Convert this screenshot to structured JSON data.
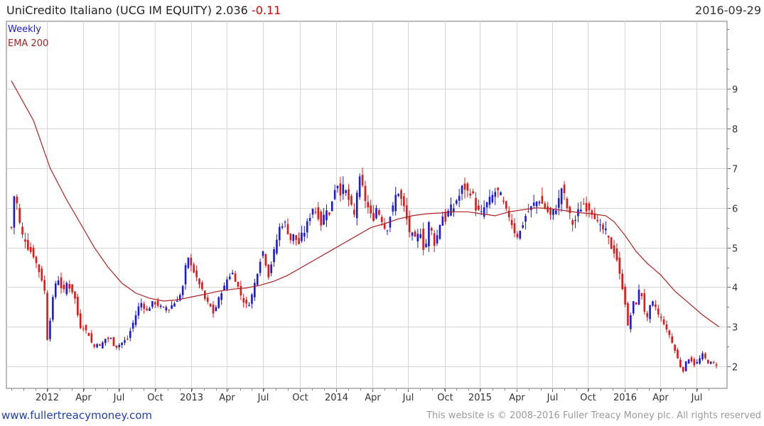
{
  "header": {
    "title_main": "UniCredito Italiano (UCG IM EQUITY) 2.036",
    "title_change": "-0.11",
    "date": "2016-09-29"
  },
  "footer": {
    "site": "www.fullertreacymoney.com",
    "copyright": "This website is © 2008-2016 Fuller Treacy Money plc. All rights reserved"
  },
  "colors": {
    "up": "#1a1adc",
    "down": "#e41515",
    "ema": "#b02020",
    "grid": "#d6d6d6"
  },
  "chart_data": {
    "type": "candlestick",
    "title": "UniCredito Italiano (UCG IM EQUITY)",
    "frequency_label": "Weekly",
    "ylim": [
      1.45,
      10.7
    ],
    "yticks": [
      2,
      3,
      4,
      5,
      6,
      7,
      8,
      9
    ],
    "xticks": [
      {
        "label": "2012",
        "t": 12.9
      },
      {
        "label": "Apr",
        "t": 25.9
      },
      {
        "label": "Jul",
        "t": 38.9
      },
      {
        "label": "Oct",
        "t": 52.0
      },
      {
        "label": "2013",
        "t": 65.1
      },
      {
        "label": "Apr",
        "t": 78.0
      },
      {
        "label": "Jul",
        "t": 91.0
      },
      {
        "label": "Oct",
        "t": 104.3
      },
      {
        "label": "2014",
        "t": 117.4
      },
      {
        "label": "Apr",
        "t": 130.5
      },
      {
        "label": "Jul",
        "t": 143.4
      },
      {
        "label": "Oct",
        "t": 156.7
      },
      {
        "label": "2015",
        "t": 169.5
      },
      {
        "label": "Apr",
        "t": 182.7
      },
      {
        "label": "Jul",
        "t": 195.6
      },
      {
        "label": "Oct",
        "t": 208.6
      },
      {
        "label": "2016",
        "t": 221.9
      },
      {
        "label": "Apr",
        "t": 234.8
      },
      {
        "label": "Jul",
        "t": 247.8
      }
    ],
    "price_anchors": [
      [
        0,
        5.5
      ],
      [
        1,
        6.3
      ],
      [
        2,
        6.1
      ],
      [
        3,
        5.6
      ],
      [
        4,
        5.3
      ],
      [
        5,
        5.2
      ],
      [
        6,
        5.0
      ],
      [
        7,
        4.9
      ],
      [
        8,
        4.8
      ],
      [
        9,
        4.6
      ],
      [
        10,
        4.4
      ],
      [
        11,
        4.2
      ],
      [
        12,
        3.9
      ],
      [
        13,
        2.7
      ],
      [
        14,
        3.2
      ],
      [
        15,
        3.7
      ],
      [
        16,
        4.1
      ],
      [
        17,
        4.2
      ],
      [
        18,
        4.0
      ],
      [
        19,
        3.9
      ],
      [
        20,
        4.1
      ],
      [
        21,
        4.0
      ],
      [
        22,
        3.9
      ],
      [
        23,
        3.7
      ],
      [
        24,
        3.3
      ],
      [
        25,
        3.0
      ],
      [
        26,
        3.0
      ],
      [
        27,
        2.9
      ],
      [
        28,
        2.8
      ],
      [
        29,
        2.6
      ],
      [
        30,
        2.5
      ],
      [
        31,
        2.6
      ],
      [
        32,
        2.5
      ],
      [
        33,
        2.6
      ],
      [
        34,
        2.7
      ],
      [
        35,
        2.7
      ],
      [
        36,
        2.7
      ],
      [
        37,
        2.55
      ],
      [
        38,
        2.5
      ],
      [
        39,
        2.55
      ],
      [
        40,
        2.6
      ],
      [
        41,
        2.65
      ],
      [
        42,
        2.7
      ],
      [
        43,
        2.9
      ],
      [
        44,
        3.1
      ],
      [
        45,
        3.3
      ],
      [
        46,
        3.5
      ],
      [
        47,
        3.6
      ],
      [
        48,
        3.5
      ],
      [
        49,
        3.4
      ],
      [
        50,
        3.5
      ],
      [
        51,
        3.6
      ],
      [
        52,
        3.6
      ],
      [
        53,
        3.55
      ],
      [
        54,
        3.5
      ],
      [
        55,
        3.45
      ],
      [
        56,
        3.5
      ],
      [
        57,
        3.45
      ],
      [
        58,
        3.55
      ],
      [
        59,
        3.6
      ],
      [
        60,
        3.7
      ],
      [
        61,
        3.8
      ],
      [
        62,
        4.0
      ],
      [
        63,
        4.5
      ],
      [
        64,
        4.7
      ],
      [
        65,
        4.6
      ],
      [
        66,
        4.4
      ],
      [
        67,
        4.2
      ],
      [
        68,
        4.1
      ],
      [
        69,
        3.9
      ],
      [
        70,
        3.7
      ],
      [
        71,
        3.6
      ],
      [
        72,
        3.5
      ],
      [
        73,
        3.35
      ],
      [
        74,
        3.5
      ],
      [
        75,
        3.7
      ],
      [
        76,
        3.9
      ],
      [
        77,
        4.0
      ],
      [
        78,
        4.2
      ],
      [
        79,
        4.3
      ],
      [
        80,
        4.35
      ],
      [
        81,
        4.2
      ],
      [
        82,
        4.0
      ],
      [
        83,
        3.8
      ],
      [
        84,
        3.65
      ],
      [
        85,
        3.55
      ],
      [
        86,
        3.6
      ],
      [
        87,
        3.8
      ],
      [
        88,
        4.1
      ],
      [
        89,
        4.4
      ],
      [
        90,
        4.7
      ],
      [
        91,
        4.9
      ],
      [
        92,
        4.6
      ],
      [
        93,
        4.3
      ],
      [
        94,
        4.6
      ],
      [
        95,
        4.9
      ],
      [
        96,
        5.2
      ],
      [
        97,
        5.5
      ],
      [
        98,
        5.6
      ],
      [
        99,
        5.6
      ],
      [
        100,
        5.4
      ],
      [
        101,
        5.2
      ],
      [
        102,
        5.3
      ],
      [
        103,
        5.2
      ],
      [
        104,
        5.1
      ],
      [
        105,
        5.3
      ],
      [
        106,
        5.4
      ],
      [
        107,
        5.6
      ],
      [
        108,
        5.8
      ],
      [
        109,
        6.0
      ],
      [
        110,
        5.9
      ],
      [
        111,
        5.8
      ],
      [
        112,
        5.6
      ],
      [
        113,
        5.8
      ],
      [
        114,
        6.0
      ],
      [
        115,
        5.8
      ],
      [
        116,
        6.2
      ],
      [
        117,
        6.5
      ],
      [
        118,
        6.6
      ],
      [
        119,
        6.4
      ],
      [
        120,
        6.5
      ],
      [
        121,
        6.4
      ],
      [
        122,
        6.2
      ],
      [
        123,
        6.0
      ],
      [
        124,
        5.8
      ],
      [
        125,
        6.4
      ],
      [
        126,
        6.7
      ],
      [
        127,
        6.5
      ],
      [
        128,
        6.2
      ],
      [
        129,
        6.0
      ],
      [
        130,
        5.8
      ],
      [
        131,
        5.75
      ],
      [
        132,
        6.0
      ],
      [
        133,
        5.85
      ],
      [
        134,
        5.7
      ],
      [
        135,
        5.5
      ],
      [
        136,
        5.5
      ],
      [
        137,
        5.8
      ],
      [
        138,
        6.0
      ],
      [
        139,
        6.3
      ],
      [
        140,
        6.4
      ],
      [
        141,
        6.2
      ],
      [
        142,
        6.0
      ],
      [
        143,
        5.7
      ],
      [
        144,
        5.4
      ],
      [
        145,
        5.3
      ],
      [
        146,
        5.2
      ],
      [
        147,
        5.3
      ],
      [
        148,
        5.4
      ],
      [
        149,
        5.0
      ],
      [
        150,
        5.1
      ],
      [
        151,
        5.6
      ],
      [
        152,
        5.4
      ],
      [
        153,
        5.1
      ],
      [
        154,
        5.3
      ],
      [
        155,
        5.6
      ],
      [
        156,
        5.8
      ],
      [
        157,
        5.7
      ],
      [
        158,
        5.9
      ],
      [
        159,
        6.0
      ],
      [
        160,
        6.0
      ],
      [
        161,
        6.2
      ],
      [
        162,
        6.3
      ],
      [
        163,
        6.5
      ],
      [
        164,
        6.5
      ],
      [
        165,
        6.4
      ],
      [
        166,
        6.4
      ],
      [
        167,
        6.3
      ],
      [
        168,
        6.0
      ],
      [
        169,
        5.9
      ],
      [
        170,
        5.85
      ],
      [
        171,
        6.0
      ],
      [
        172,
        6.1
      ],
      [
        173,
        6.2
      ],
      [
        174,
        6.3
      ],
      [
        175,
        6.4
      ],
      [
        176,
        6.4
      ],
      [
        177,
        6.3
      ],
      [
        178,
        6.1
      ],
      [
        179,
        5.9
      ],
      [
        180,
        5.8
      ],
      [
        181,
        5.6
      ],
      [
        182,
        5.4
      ],
      [
        183,
        5.3
      ],
      [
        184,
        5.4
      ],
      [
        185,
        5.6
      ],
      [
        186,
        5.8
      ],
      [
        187,
        5.9
      ],
      [
        188,
        6.0
      ],
      [
        189,
        6.1
      ],
      [
        190,
        6.15
      ],
      [
        191,
        6.2
      ],
      [
        192,
        6.1
      ],
      [
        193,
        6.0
      ],
      [
        194,
        5.9
      ],
      [
        195,
        5.8
      ],
      [
        196,
        5.9
      ],
      [
        197,
        6.0
      ],
      [
        198,
        6.2
      ],
      [
        199,
        6.5
      ],
      [
        200,
        6.3
      ],
      [
        201,
        6.0
      ],
      [
        202,
        5.8
      ],
      [
        203,
        5.6
      ],
      [
        204,
        5.7
      ],
      [
        205,
        5.9
      ],
      [
        206,
        6.0
      ],
      [
        207,
        6.1
      ],
      [
        208,
        6.0
      ],
      [
        209,
        6.0
      ],
      [
        210,
        5.9
      ],
      [
        211,
        5.8
      ],
      [
        212,
        5.6
      ],
      [
        213,
        5.5
      ],
      [
        214,
        5.45
      ],
      [
        215,
        5.4
      ],
      [
        216,
        5.2
      ],
      [
        217,
        5.0
      ],
      [
        218,
        4.9
      ],
      [
        219,
        4.7
      ],
      [
        220,
        4.3
      ],
      [
        221,
        4.0
      ],
      [
        222,
        3.6
      ],
      [
        223,
        3.0
      ],
      [
        224,
        3.3
      ],
      [
        225,
        3.6
      ],
      [
        226,
        3.6
      ],
      [
        227,
        3.9
      ],
      [
        228,
        3.8
      ],
      [
        229,
        3.4
      ],
      [
        230,
        3.2
      ],
      [
        231,
        3.5
      ],
      [
        232,
        3.6
      ],
      [
        233,
        3.5
      ],
      [
        234,
        3.3
      ],
      [
        235,
        3.2
      ],
      [
        236,
        3.1
      ],
      [
        237,
        2.9
      ],
      [
        238,
        2.8
      ],
      [
        239,
        2.6
      ],
      [
        240,
        2.4
      ],
      [
        241,
        2.2
      ],
      [
        242,
        2.0
      ],
      [
        243,
        1.9
      ],
      [
        244,
        2.1
      ],
      [
        245,
        2.2
      ],
      [
        246,
        2.15
      ],
      [
        247,
        2.05
      ],
      [
        248,
        2.1
      ],
      [
        249,
        2.2
      ],
      [
        250,
        2.3
      ],
      [
        251,
        2.2
      ],
      [
        252,
        2.1
      ],
      [
        253,
        2.1
      ],
      [
        254,
        2.08
      ],
      [
        255,
        2.04
      ]
    ],
    "ema": {
      "name": "EMA 200",
      "points": [
        [
          0,
          9.2
        ],
        [
          8,
          8.2
        ],
        [
          14,
          7.0
        ],
        [
          20,
          6.2
        ],
        [
          25,
          5.6
        ],
        [
          30,
          5.0
        ],
        [
          35,
          4.5
        ],
        [
          40,
          4.1
        ],
        [
          45,
          3.85
        ],
        [
          50,
          3.72
        ],
        [
          55,
          3.65
        ],
        [
          60,
          3.68
        ],
        [
          65,
          3.75
        ],
        [
          70,
          3.82
        ],
        [
          75,
          3.9
        ],
        [
          80,
          3.95
        ],
        [
          85,
          3.98
        ],
        [
          90,
          4.05
        ],
        [
          95,
          4.15
        ],
        [
          100,
          4.3
        ],
        [
          105,
          4.5
        ],
        [
          110,
          4.7
        ],
        [
          115,
          4.9
        ],
        [
          120,
          5.1
        ],
        [
          125,
          5.3
        ],
        [
          130,
          5.5
        ],
        [
          135,
          5.6
        ],
        [
          140,
          5.72
        ],
        [
          145,
          5.8
        ],
        [
          150,
          5.85
        ],
        [
          155,
          5.87
        ],
        [
          160,
          5.9
        ],
        [
          165,
          5.9
        ],
        [
          170,
          5.85
        ],
        [
          175,
          5.8
        ],
        [
          180,
          5.9
        ],
        [
          185,
          5.95
        ],
        [
          190,
          6.0
        ],
        [
          195,
          5.98
        ],
        [
          200,
          5.93
        ],
        [
          205,
          5.88
        ],
        [
          210,
          5.85
        ],
        [
          215,
          5.8
        ],
        [
          218,
          5.65
        ],
        [
          222,
          5.3
        ],
        [
          226,
          4.9
        ],
        [
          230,
          4.6
        ],
        [
          235,
          4.3
        ],
        [
          240,
          3.9
        ],
        [
          245,
          3.6
        ],
        [
          250,
          3.3
        ],
        [
          255,
          3.05
        ],
        [
          256,
          3.0
        ]
      ]
    },
    "legend": [
      "Weekly",
      "EMA 200"
    ],
    "last_close": 2.036,
    "change": -0.11
  }
}
